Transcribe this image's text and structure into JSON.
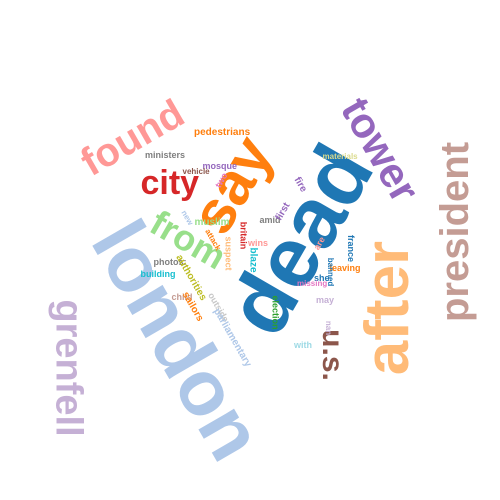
{
  "words": [
    {
      "text": "dead",
      "color": "#1f77b4",
      "rotation": -60
    },
    {
      "text": "london",
      "color": "#aec7e8",
      "rotation": 60
    },
    {
      "text": "say",
      "color": "#ff7f0e",
      "rotation": -60
    },
    {
      "text": "after",
      "color": "#ffbb78",
      "rotation": -90
    },
    {
      "text": "grenfell",
      "color": "#c5b0d5",
      "rotation": 90
    },
    {
      "text": "president",
      "color": "#c49c94",
      "rotation": -90
    },
    {
      "text": "found",
      "color": "#ff9896",
      "rotation": -30
    },
    {
      "text": "tower",
      "color": "#9467bd",
      "rotation": 60
    },
    {
      "text": "from",
      "color": "#98df8a",
      "rotation": 30
    },
    {
      "text": "city",
      "color": "#d62728",
      "rotation": 0
    },
    {
      "text": "u.s.",
      "color": "#8c564b",
      "rotation": 90
    },
    {
      "text": "pedestrians",
      "color": "#ff7f0e",
      "rotation": 0
    },
    {
      "text": "ministers",
      "color": "#7f7f7f",
      "rotation": 0
    },
    {
      "text": "mosque",
      "color": "#9467bd",
      "rotation": 0
    },
    {
      "text": "vehicle",
      "color": "#8c564b",
      "rotation": 0
    },
    {
      "text": "two",
      "color": "#e377c2",
      "rotation": -60
    },
    {
      "text": "materials",
      "color": "#dbdb8d",
      "rotation": 0
    },
    {
      "text": "fire",
      "color": "#9467bd",
      "rotation": 60
    },
    {
      "text": "muslim",
      "color": "#98df8a",
      "rotation": 0
    },
    {
      "text": "new",
      "color": "#aec7e8",
      "rotation": 60
    },
    {
      "text": "amid",
      "color": "#7f7f7f",
      "rotation": 0
    },
    {
      "text": "first",
      "color": "#9467bd",
      "rotation": -60
    },
    {
      "text": "attack",
      "color": "#ff7f0e",
      "rotation": 60
    },
    {
      "text": "britain",
      "color": "#d62728",
      "rotation": 90
    },
    {
      "text": "wins",
      "color": "#ff9896",
      "rotation": 0
    },
    {
      "text": "suspect",
      "color": "#ffbb78",
      "rotation": 90
    },
    {
      "text": "blaze",
      "color": "#17becf",
      "rotation": 90
    },
    {
      "text": "france",
      "color": "#1f77b4",
      "rotation": 90
    },
    {
      "text": "leaving",
      "color": "#ff7f0e",
      "rotation": 0
    },
    {
      "text": "photos:",
      "color": "#7f7f7f",
      "rotation": 0
    },
    {
      "text": "authorities",
      "color": "#bcbd22",
      "rotation": 60
    },
    {
      "text": "building",
      "color": "#17becf",
      "rotation": 0
    },
    {
      "text": "child",
      "color": "#c49c94",
      "rotation": 0
    },
    {
      "text": "sailors",
      "color": "#ff7f0e",
      "rotation": 60
    },
    {
      "text": "outside",
      "color": "#c7c7c7",
      "rotation": 60
    },
    {
      "text": "election",
      "color": "#2ca02c",
      "rotation": 90
    },
    {
      "text": "parliamentary",
      "color": "#aec7e8",
      "rotation": 60
    },
    {
      "text": "she",
      "color": "#1f77b4",
      "rotation": 0
    },
    {
      "text": "missing",
      "color": "#e377c2",
      "rotation": 0
    },
    {
      "text": "may",
      "color": "#c5b0d5",
      "rotation": 0
    },
    {
      "text": "banned",
      "color": "#1f77b4",
      "rotation": 90
    },
    {
      "text": "are",
      "color": "#ff9896",
      "rotation": -60
    },
    {
      "text": "with",
      "color": "#9edae5",
      "rotation": 0
    },
    {
      "text": "nan",
      "color": "#c5b0d5",
      "rotation": 90
    }
  ]
}
